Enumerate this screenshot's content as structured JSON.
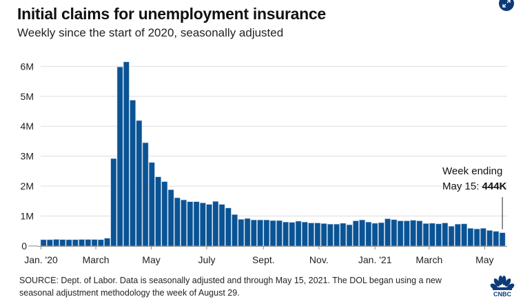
{
  "header": {
    "title": "Initial claims for unemployment insurance",
    "subtitle": "Weekly since the start of 2020, seasonally adjusted",
    "expand_icon": "expand-arrows-icon"
  },
  "annotation": {
    "line1": "Week ending",
    "line2_prefix": "May 15: ",
    "line2_value": "444K"
  },
  "footer": {
    "source": "SOURCE: Dept. of Labor. Data is seasonally adjusted and through May 15, 2021. The DOL began using a new seasonal adjustment methodology the week of August 29.",
    "logo": "CNBC",
    "logo_icon": "cnbc-peacock-logo-icon"
  },
  "colors": {
    "bar": "#0a5394",
    "grid": "#dddddd",
    "axis": "#888888",
    "expand_button": "#0c3a78"
  },
  "chart_data": {
    "type": "bar",
    "title": "Initial claims for unemployment insurance",
    "subtitle": "Weekly since the start of 2020, seasonally adjusted",
    "xlabel": "",
    "ylabel": "",
    "ylim": [
      0,
      6200000
    ],
    "grid": true,
    "yticks": [
      0,
      1000000,
      2000000,
      3000000,
      4000000,
      5000000,
      6000000
    ],
    "ytick_labels": [
      "0",
      "1M",
      "2M",
      "3M",
      "4M",
      "5M",
      "6M"
    ],
    "xtick_labels": [
      "Jan. '20",
      "March",
      "May",
      "July",
      "Sept.",
      "Nov.",
      "Jan. '21",
      "March",
      "May"
    ],
    "xtick_week_index": [
      0,
      8.6,
      17.3,
      26,
      34.9,
      43.6,
      52.4,
      60.9,
      69.6
    ],
    "x_start": "Week ending Jan. 4, 2020",
    "x_end": "Week ending May 15, 2021",
    "series": [
      {
        "name": "Initial claims",
        "values": [
          210000,
          210000,
          220000,
          215000,
          210000,
          212000,
          218000,
          218000,
          217000,
          212000,
          260000,
          2920000,
          5980000,
          6150000,
          4870000,
          4190000,
          3450000,
          2790000,
          2310000,
          2150000,
          1880000,
          1610000,
          1540000,
          1480000,
          1480000,
          1440000,
          1390000,
          1490000,
          1390000,
          1270000,
          1050000,
          890000,
          920000,
          870000,
          870000,
          870000,
          850000,
          850000,
          800000,
          790000,
          830000,
          800000,
          770000,
          770000,
          750000,
          730000,
          730000,
          760000,
          710000,
          840000,
          870000,
          800000,
          760000,
          780000,
          910000,
          880000,
          840000,
          840000,
          860000,
          840000,
          750000,
          760000,
          740000,
          770000,
          660000,
          730000,
          740000,
          590000,
          570000,
          590000,
          520000,
          490000,
          444000
        ]
      }
    ],
    "annotation": "Week ending May 15: 444K"
  }
}
